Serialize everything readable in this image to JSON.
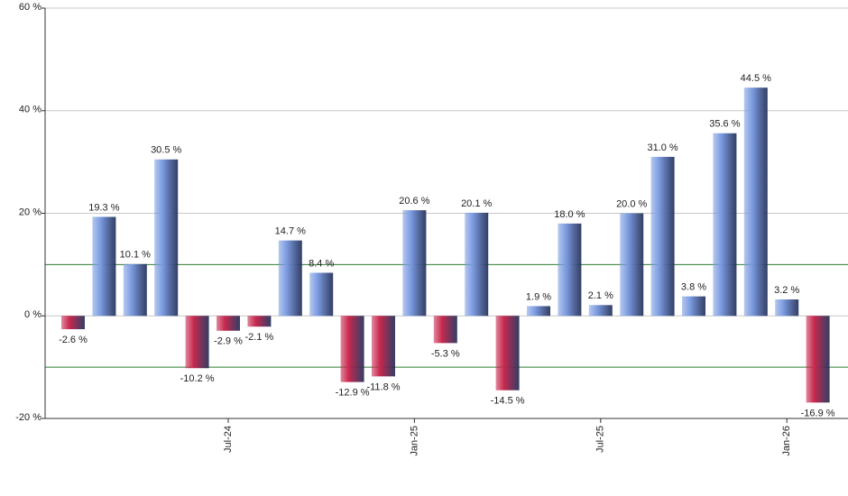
{
  "chart_data": {
    "type": "bar",
    "categories": [
      null,
      null,
      null,
      null,
      null,
      "Jul-24",
      null,
      null,
      null,
      null,
      null,
      "Jan-25",
      null,
      null,
      null,
      null,
      null,
      "Jul-25",
      null,
      null,
      null,
      null,
      null,
      "Jan-26",
      null
    ],
    "values": [
      -2.6,
      19.3,
      10.1,
      30.5,
      -10.2,
      -2.9,
      -2.1,
      14.7,
      8.4,
      -12.9,
      -11.8,
      20.6,
      -5.3,
      20.1,
      -14.5,
      1.9,
      18.0,
      2.1,
      20.0,
      31.0,
      3.8,
      35.6,
      44.5,
      3.2,
      -16.9
    ],
    "value_labels": [
      "-2.6 %",
      "19.3 %",
      "10.1 %",
      "30.5 %",
      "-10.2 %",
      "-2.9 %",
      "-2.1 %",
      "14.7 %",
      "8.4 %",
      "-12.9 %",
      "-11.8 %",
      "20.6 %",
      "-5.3 %",
      "20.1 %",
      "-14.5 %",
      "1.9 %",
      "18.0 %",
      "2.1 %",
      "20.0 %",
      "31.0 %",
      "3.8 %",
      "35.6 %",
      "44.5 %",
      "3.2 %",
      "-16.9 %"
    ],
    "positive_color": "#7b9be0",
    "negative_color": "#c8284e",
    "ylim": [
      -20,
      60
    ],
    "yticks": [
      {
        "value": -20,
        "label": "-20 %"
      },
      {
        "value": 0,
        "label": "0 %"
      },
      {
        "value": 20,
        "label": "20 %"
      },
      {
        "value": 40,
        "label": "40 %"
      },
      {
        "value": 60,
        "label": "60 %"
      }
    ],
    "reference_lines": [
      10,
      -10
    ],
    "reference_color": "#2e7d32",
    "grid": true
  }
}
